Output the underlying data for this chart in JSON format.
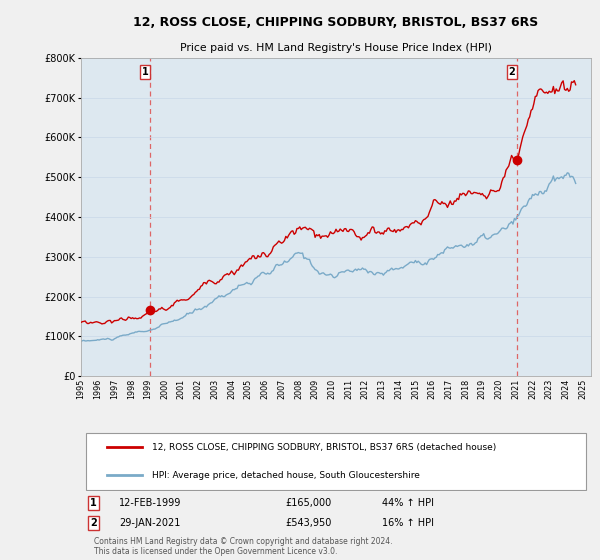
{
  "title_line1": "12, ROSS CLOSE, CHIPPING SODBURY, BRISTOL, BS37 6RS",
  "title_line2": "Price paid vs. HM Land Registry's House Price Index (HPI)",
  "xlim_start": 1995.0,
  "xlim_end": 2025.5,
  "ylim_min": 0,
  "ylim_max": 800000,
  "yticks": [
    0,
    100000,
    200000,
    300000,
    400000,
    500000,
    600000,
    700000,
    800000
  ],
  "ytick_labels": [
    "£0",
    "£100K",
    "£200K",
    "£300K",
    "£400K",
    "£500K",
    "£600K",
    "£700K",
    "£800K"
  ],
  "xtick_years": [
    1995,
    1996,
    1997,
    1998,
    1999,
    2000,
    2001,
    2002,
    2003,
    2004,
    2005,
    2006,
    2007,
    2008,
    2009,
    2010,
    2011,
    2012,
    2013,
    2014,
    2015,
    2016,
    2017,
    2018,
    2019,
    2020,
    2021,
    2022,
    2023,
    2024,
    2025
  ],
  "sale1_x": 1999.12,
  "sale1_y": 165000,
  "sale1_label": "1",
  "sale1_date": "12-FEB-1999",
  "sale1_price": "£165,000",
  "sale1_hpi": "44% ↑ HPI",
  "sale2_x": 2021.08,
  "sale2_y": 543950,
  "sale2_label": "2",
  "sale2_date": "29-JAN-2021",
  "sale2_price": "£543,950",
  "sale2_hpi": "16% ↑ HPI",
  "red_color": "#cc0000",
  "blue_color": "#7aaac8",
  "vline_color": "#dd6666",
  "background_color": "#f0f0f0",
  "plot_bg_color": "#dde8f0",
  "legend_label_red": "12, ROSS CLOSE, CHIPPING SODBURY, BRISTOL, BS37 6RS (detached house)",
  "legend_label_blue": "HPI: Average price, detached house, South Gloucestershire",
  "footer": "Contains HM Land Registry data © Crown copyright and database right 2024.\nThis data is licensed under the Open Government Licence v3.0."
}
